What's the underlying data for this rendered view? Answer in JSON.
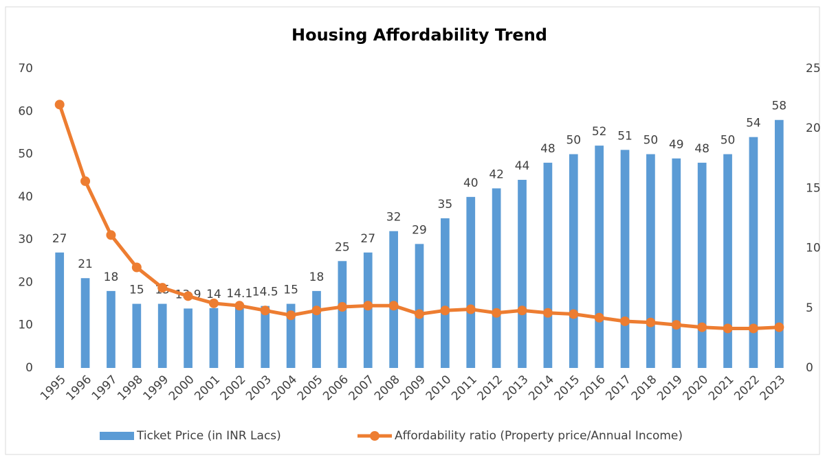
{
  "chart_data": {
    "type": "bar",
    "title": "Housing Affordability Trend",
    "categories": [
      "1995",
      "1996",
      "1997",
      "1998",
      "1999",
      "2000",
      "2001",
      "2002",
      "2003",
      "2004",
      "2005",
      "2006",
      "2007",
      "2008",
      "2009",
      "2010",
      "2011",
      "2012",
      "2013",
      "2014",
      "2015",
      "2016",
      "2017",
      "2018",
      "2019",
      "2020",
      "2021",
      "2022",
      "2023"
    ],
    "series": [
      {
        "name": "Ticket Price (in INR Lacs)",
        "type": "bar",
        "color": "#5b9bd5",
        "values": [
          27,
          21,
          18,
          15,
          15,
          13.9,
          14,
          14.1,
          14.5,
          15,
          18,
          25,
          27,
          32,
          29,
          35,
          40,
          42,
          44,
          48,
          50,
          52,
          51,
          50,
          49,
          48,
          50,
          54,
          58
        ]
      },
      {
        "name": "Affordability ratio (Property price/Annual Income)",
        "type": "line",
        "axis": "y2",
        "color": "#ed7d31",
        "values": [
          22,
          15.6,
          11.1,
          8.4,
          6.7,
          6.0,
          5.4,
          5.2,
          4.8,
          4.4,
          4.8,
          5.1,
          5.2,
          5.2,
          4.5,
          4.8,
          4.9,
          4.6,
          4.8,
          4.6,
          4.5,
          4.2,
          3.9,
          3.8,
          3.6,
          3.4,
          3.3,
          3.3,
          3.4
        ]
      }
    ],
    "ylim": [
      0,
      70
    ],
    "yticks": [
      0,
      10,
      20,
      30,
      40,
      50,
      60,
      70
    ],
    "y2lim": [
      0,
      25
    ],
    "y2ticks": [
      0,
      5,
      10,
      15,
      20,
      25
    ],
    "grid": false,
    "legend": "bottom"
  }
}
